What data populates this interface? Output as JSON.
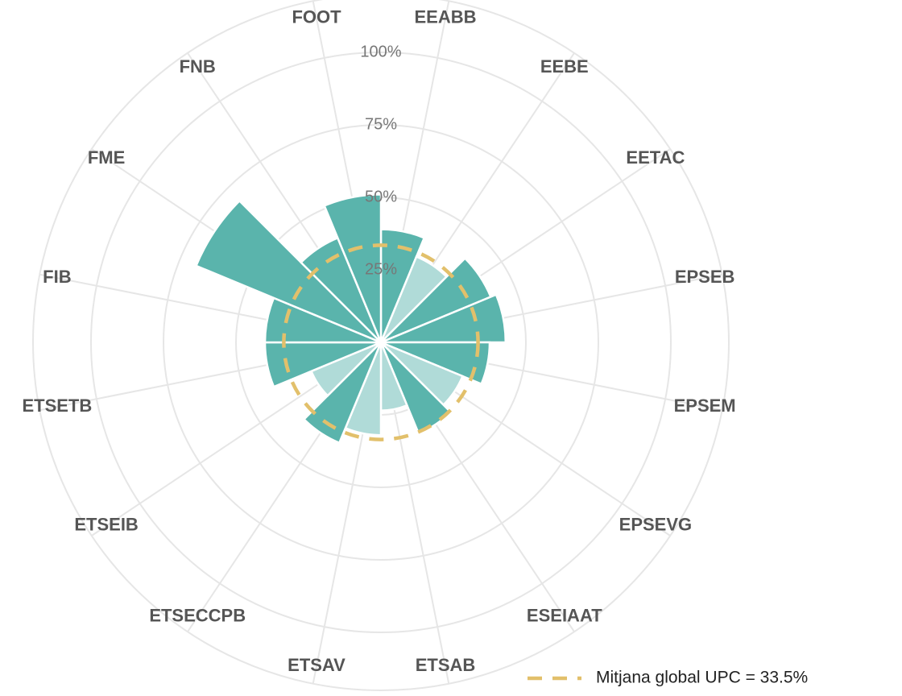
{
  "chart_data": {
    "type": "polar-bar",
    "categories": [
      "EEABB",
      "EEBE",
      "EETAC",
      "EPSEB",
      "EPSEM",
      "EPSEVG",
      "ESEIAAT",
      "ETSAB",
      "ETSAV",
      "ETSECCPB",
      "ETSEIB",
      "ETSETB",
      "FIB",
      "FME",
      "FNB",
      "FOOT"
    ],
    "values": [
      39,
      32,
      41,
      43,
      37.5,
      30.5,
      34,
      23.5,
      32,
      37.5,
      26,
      40,
      40,
      69,
      39,
      51
    ],
    "colors": [
      "#5ab4ac",
      "#b0dbd8",
      "#5ab4ac",
      "#5ab4ac",
      "#5ab4ac",
      "#b0dbd8",
      "#5ab4ac",
      "#b0dbd8",
      "#b0dbd8",
      "#5ab4ac",
      "#b0dbd8",
      "#5ab4ac",
      "#5ab4ac",
      "#5ab4ac",
      "#5ab4ac",
      "#5ab4ac"
    ],
    "ylim": [
      0,
      120
    ],
    "yticks": [
      {
        "value": 25,
        "label": "25%"
      },
      {
        "value": 50,
        "label": "50%"
      },
      {
        "value": 75,
        "label": "75%"
      },
      {
        "value": 100,
        "label": "100%"
      }
    ],
    "grid": true,
    "reference_line": {
      "value": 33.5,
      "label": "Mitjana global UPC = 33.5%",
      "color": "#e2c06b"
    },
    "legend": "bottom-right"
  }
}
